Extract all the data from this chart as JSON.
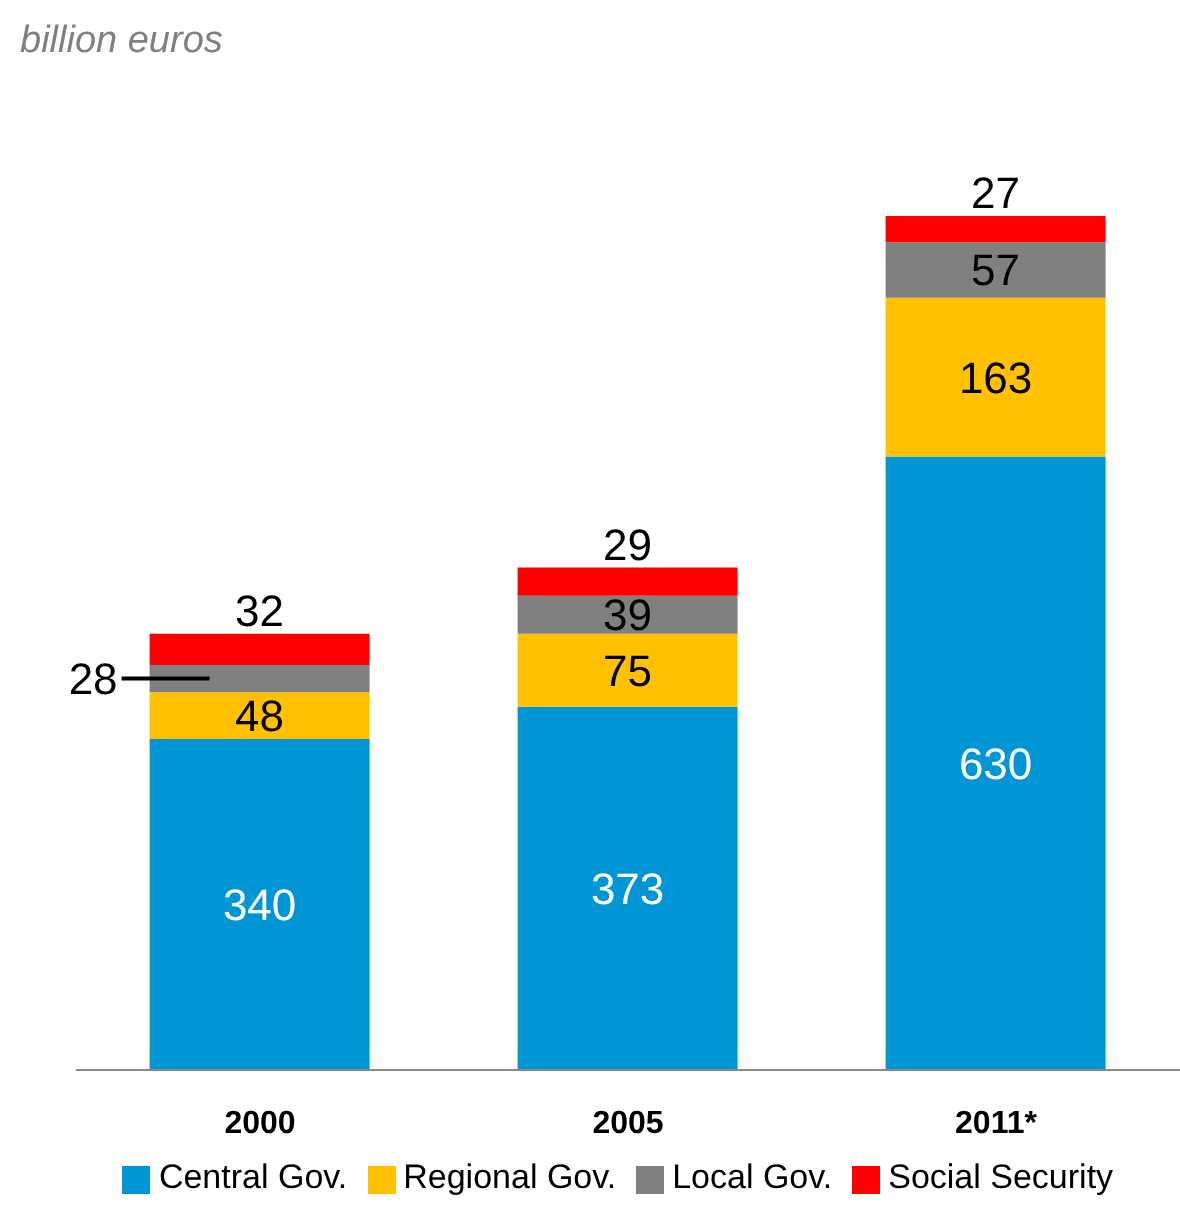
{
  "chart_data": {
    "type": "bar",
    "subtitle": "billion euros",
    "categories": [
      "2000",
      "2005",
      "2011*"
    ],
    "stacked": true,
    "data_labels": true,
    "legend": "bottom",
    "grid": false,
    "series": [
      {
        "name": "Central Gov.",
        "color": "#0096d6",
        "values": [
          340,
          373,
          630
        ]
      },
      {
        "name": "Regional Gov.",
        "color": "#ffc000",
        "values": [
          48,
          75,
          163
        ]
      },
      {
        "name": "Local Gov.",
        "color": "#808080",
        "values": [
          28,
          39,
          57
        ]
      },
      {
        "name": "Social Security",
        "color": "#ff0000",
        "values": [
          32,
          29,
          27
        ]
      }
    ]
  }
}
